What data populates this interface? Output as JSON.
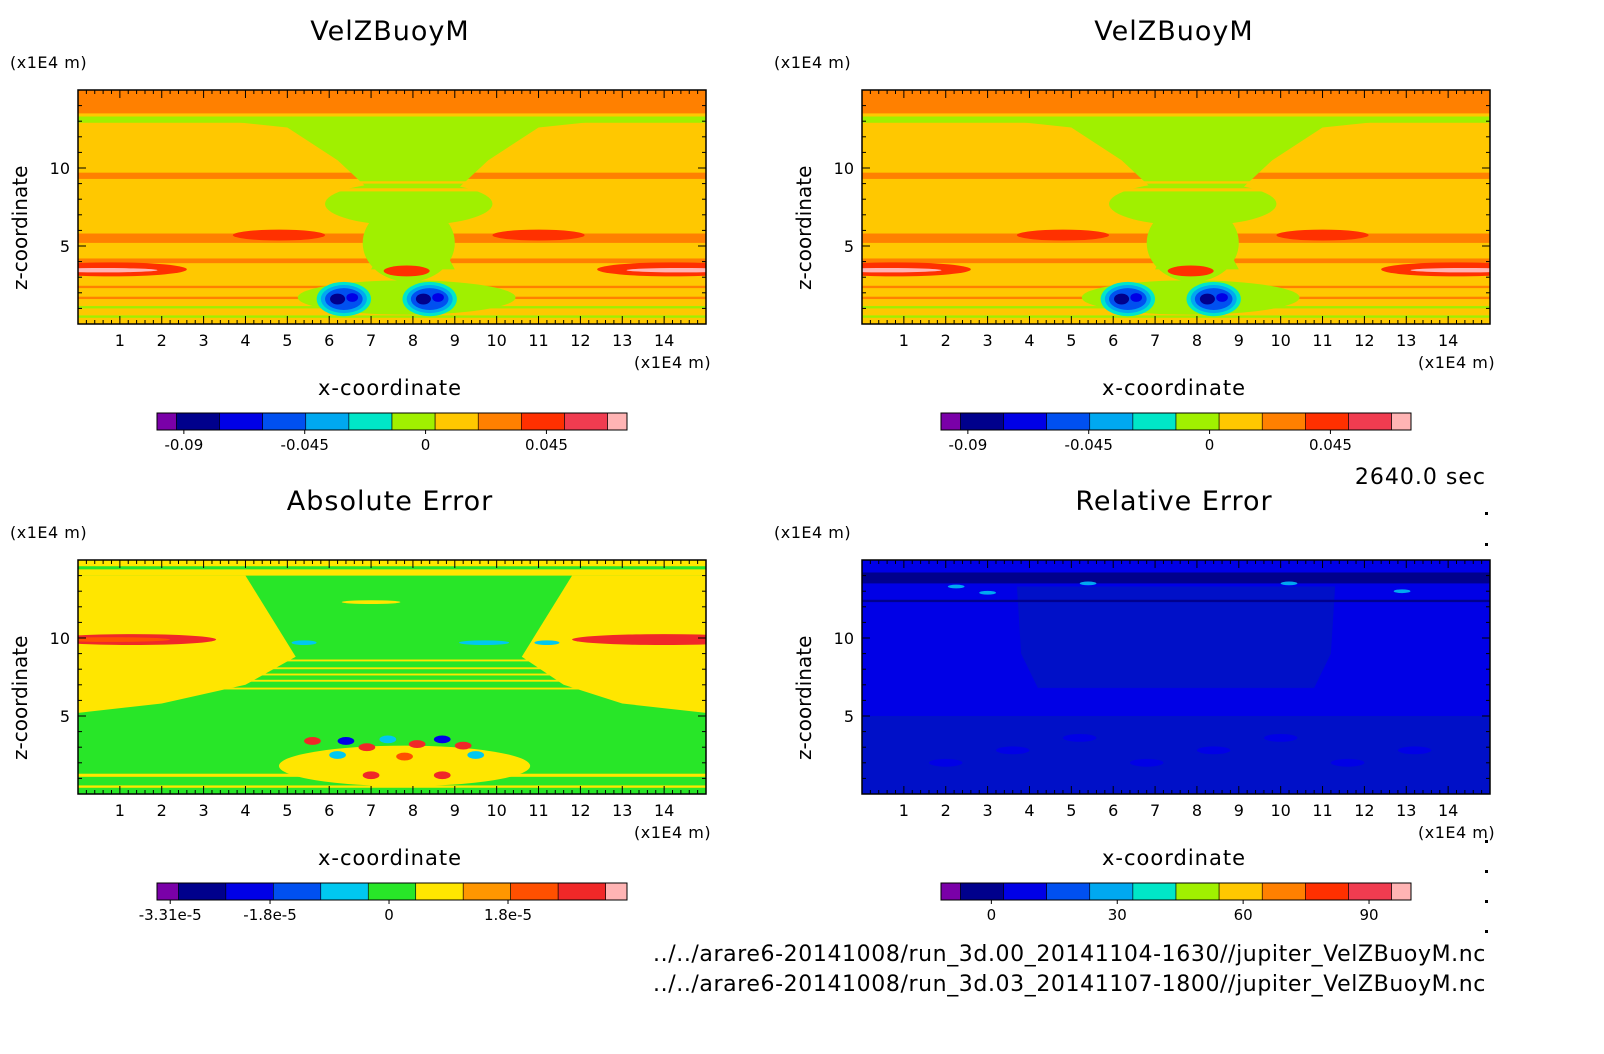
{
  "figure": {
    "time_stamp": "2640.0 sec",
    "files": [
      "../../arare6-20141008/run_3d.00_20141104-1630//jupiter_VelZBuoyM.nc",
      "../../arare6-20141008/run_3d.03_20141107-1800//jupiter_VelZBuoyM.nc"
    ]
  },
  "chart_data": [
    {
      "type": "heatmap",
      "title": "VelZBuoyM",
      "xlabel": "x-coordinate",
      "ylabel": "z-coordinate",
      "x_unit": "(x1E4 m)",
      "y_unit": "(x1E4 m)",
      "xlim": [
        0,
        15
      ],
      "ylim": [
        0,
        15
      ],
      "x_ticks": [
        1,
        2,
        3,
        4,
        5,
        6,
        7,
        8,
        9,
        10,
        11,
        12,
        13,
        14
      ],
      "y_ticks": [
        5,
        10
      ],
      "colorbar": {
        "colors": [
          "#7a00a8",
          "#00008c",
          "#0000e6",
          "#0050f0",
          "#00a8f0",
          "#00e6c8",
          "#a0f000",
          "#ffc800",
          "#ff8000",
          "#ff3000",
          "#f03c50",
          "#ffb4b4"
        ],
        "ticks": [
          "-0.09",
          "-0.045",
          "0",
          "0.045"
        ],
        "tick_values": [
          -0.09,
          -0.045,
          0,
          0.045
        ],
        "range": [
          -0.1,
          0.075
        ]
      },
      "variant": "vel"
    },
    {
      "type": "heatmap",
      "title": "VelZBuoyM",
      "xlabel": "x-coordinate",
      "ylabel": "z-coordinate",
      "x_unit": "(x1E4 m)",
      "y_unit": "(x1E4 m)",
      "xlim": [
        0,
        15
      ],
      "ylim": [
        0,
        15
      ],
      "x_ticks": [
        1,
        2,
        3,
        4,
        5,
        6,
        7,
        8,
        9,
        10,
        11,
        12,
        13,
        14
      ],
      "y_ticks": [
        5,
        10
      ],
      "colorbar": {
        "colors": [
          "#7a00a8",
          "#00008c",
          "#0000e6",
          "#0050f0",
          "#00a8f0",
          "#00e6c8",
          "#a0f000",
          "#ffc800",
          "#ff8000",
          "#ff3000",
          "#f03c50",
          "#ffb4b4"
        ],
        "ticks": [
          "-0.09",
          "-0.045",
          "0",
          "0.045"
        ],
        "tick_values": [
          -0.09,
          -0.045,
          0,
          0.045
        ],
        "range": [
          -0.1,
          0.075
        ]
      },
      "variant": "vel"
    },
    {
      "type": "heatmap",
      "title": "Absolute Error",
      "xlabel": "x-coordinate",
      "ylabel": "z-coordinate",
      "x_unit": "(x1E4 m)",
      "y_unit": "(x1E4 m)",
      "xlim": [
        0,
        15
      ],
      "ylim": [
        0,
        15
      ],
      "x_ticks": [
        1,
        2,
        3,
        4,
        5,
        6,
        7,
        8,
        9,
        10,
        11,
        12,
        13,
        14
      ],
      "y_ticks": [
        5,
        10
      ],
      "colorbar": {
        "colors": [
          "#7a00a8",
          "#00008c",
          "#0000e6",
          "#0050f0",
          "#00c8f0",
          "#28e628",
          "#ffe600",
          "#ff9600",
          "#ff5000",
          "#f02828",
          "#ffb4b4"
        ],
        "ticks": [
          "-3.31e-5",
          "-1.8e-5",
          "0",
          "1.8e-5"
        ],
        "tick_values": [
          -3.31e-05,
          -1.8e-05,
          0,
          1.8e-05
        ],
        "range": [
          -3.51e-05,
          3.6e-05
        ]
      },
      "variant": "abs"
    },
    {
      "type": "heatmap",
      "title": "Relative Error",
      "xlabel": "x-coordinate",
      "ylabel": "z-coordinate",
      "x_unit": "(x1E4 m)",
      "y_unit": "(x1E4 m)",
      "xlim": [
        0,
        15
      ],
      "ylim": [
        0,
        15
      ],
      "x_ticks": [
        1,
        2,
        3,
        4,
        5,
        6,
        7,
        8,
        9,
        10,
        11,
        12,
        13,
        14
      ],
      "y_ticks": [
        5,
        10
      ],
      "colorbar": {
        "colors": [
          "#7a00a8",
          "#00008c",
          "#0000e6",
          "#0050f0",
          "#00a8f0",
          "#00e6c8",
          "#a0f000",
          "#ffc800",
          "#ff8000",
          "#ff3000",
          "#f03c50",
          "#ffb4b4"
        ],
        "ticks": [
          "0",
          "30",
          "60",
          "90"
        ],
        "tick_values": [
          0,
          30,
          60,
          90
        ],
        "range": [
          -12,
          100
        ]
      },
      "variant": "rel"
    }
  ]
}
